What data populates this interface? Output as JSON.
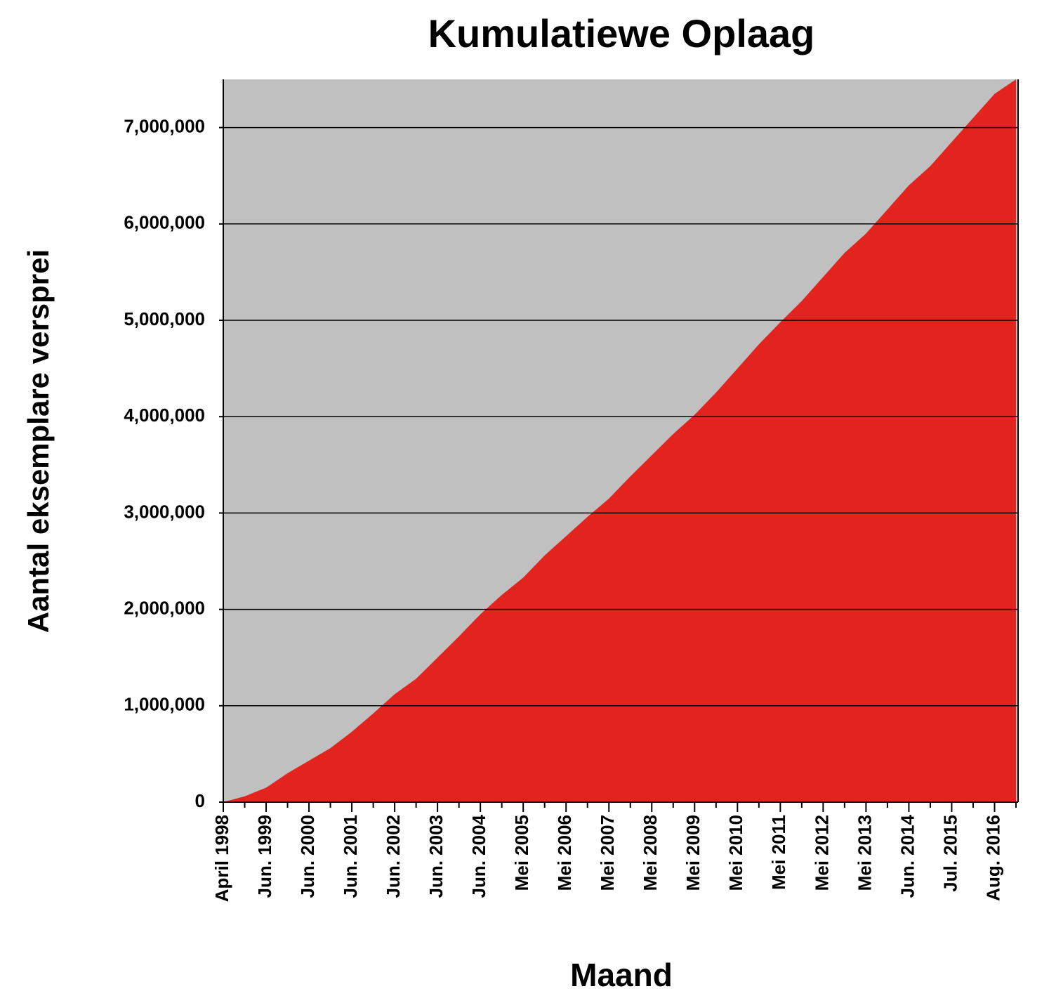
{
  "chart_data": {
    "type": "area",
    "title": "Kumulatiewe Oplaag",
    "x_label": "Maand",
    "y_label": "Aantal eksemplare versprei",
    "categories": [
      "April 1998",
      null,
      "Jun. 1999",
      null,
      "Jun. 2000",
      null,
      "Jun. 2001",
      null,
      "Jun. 2002",
      null,
      "Jun. 2003",
      null,
      "Jun. 2004",
      null,
      "Mei 2005",
      null,
      "Mei 2006",
      null,
      "Mei 2007",
      null,
      "Mei 2008",
      null,
      "Mei 2009",
      null,
      "Mei 2010",
      null,
      "Mei 2011",
      null,
      "Mei 2012",
      null,
      "Mei 2013",
      null,
      "Jun. 2014",
      null,
      "Jul. 2015",
      null,
      "Aug. 2016",
      null
    ],
    "values": [
      0,
      60000,
      150000,
      300000,
      430000,
      560000,
      730000,
      920000,
      1120000,
      1280000,
      1500000,
      1720000,
      1950000,
      2150000,
      2330000,
      2560000,
      2760000,
      2960000,
      3150000,
      3380000,
      3600000,
      3820000,
      4020000,
      4250000,
      4500000,
      4750000,
      4980000,
      5200000,
      5450000,
      5700000,
      5900000,
      6150000,
      6400000,
      6600000,
      6850000,
      7100000,
      7350000,
      7500000
    ],
    "color": "#e3231e",
    "background": "#c0c0c0",
    "ylim": [
      0,
      7500000
    ],
    "yticks": [
      0,
      {
        "value": 1000000,
        "label": "1,000,000"
      },
      {
        "value": 2000000,
        "label": "2,000,000"
      },
      {
        "value": 3000000,
        "label": "3,000,000"
      },
      {
        "value": 4000000,
        "label": "4,000,000"
      },
      {
        "value": 5000000,
        "label": "5,000,000"
      },
      {
        "value": 6000000,
        "label": "6,000,000"
      },
      {
        "value": 7000000,
        "label": "7,000,000"
      }
    ],
    "grid": true
  }
}
